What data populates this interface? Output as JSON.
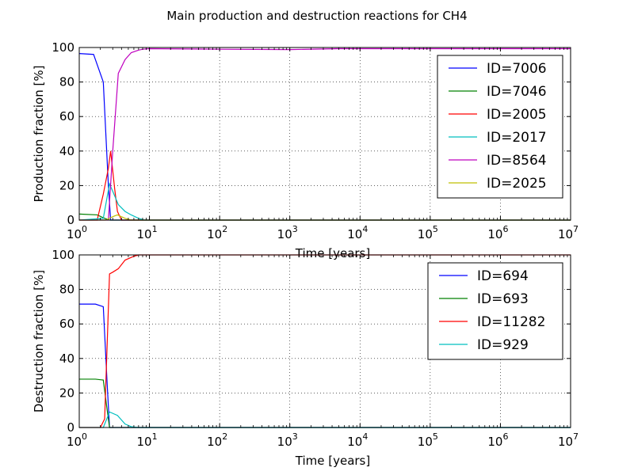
{
  "chart_data": [
    {
      "type": "line",
      "title": "Main production and destruction reactions for CH4",
      "xlabel": "Time [years]",
      "ylabel": "Production fraction [%]",
      "xscale": "log",
      "xlim": [
        1,
        10000000
      ],
      "ylim": [
        0,
        100
      ],
      "yticks": [
        0,
        20,
        40,
        60,
        80,
        100
      ],
      "xtick_labels": [
        {
          "base": "10",
          "exp": "0"
        },
        {
          "base": "10",
          "exp": "1"
        },
        {
          "base": "10",
          "exp": "2"
        },
        {
          "base": "10",
          "exp": "3"
        },
        {
          "base": "10",
          "exp": "4"
        },
        {
          "base": "10",
          "exp": "5"
        },
        {
          "base": "10",
          "exp": "6"
        },
        {
          "base": "10",
          "exp": "7"
        }
      ],
      "grid": true,
      "legend_position": "right",
      "series": [
        {
          "name": "ID=7006",
          "color": "#0000ff",
          "x": [
            1,
            1.6,
            2.2,
            2.6,
            2.8,
            10000000
          ],
          "y": [
            96.5,
            96,
            80,
            20,
            0,
            0
          ]
        },
        {
          "name": "ID=7046",
          "color": "#008000",
          "x": [
            1,
            1.8,
            2.3,
            2.7,
            10000000
          ],
          "y": [
            3.5,
            3,
            1,
            0,
            0
          ]
        },
        {
          "name": "ID=2005",
          "color": "#ff0000",
          "x": [
            1,
            1.8,
            2.2,
            2.6,
            2.8,
            3.2,
            3.5,
            4,
            10000000
          ],
          "y": [
            0,
            0,
            15,
            30,
            40,
            18,
            5,
            0,
            0
          ]
        },
        {
          "name": "ID=2017",
          "color": "#00bfbf",
          "x": [
            1,
            2.2,
            2.7,
            3.2,
            3.6,
            4.5,
            5.5,
            7,
            8.5,
            10000000
          ],
          "y": [
            0,
            1,
            21,
            14,
            9,
            5,
            3,
            1,
            0,
            0
          ]
        },
        {
          "name": "ID=8564",
          "color": "#bf00bf",
          "x": [
            1,
            2.6,
            3,
            3.6,
            4.5,
            5.5,
            7,
            8,
            10,
            100,
            1000,
            5000,
            10000000
          ],
          "y": [
            0,
            0,
            40,
            85,
            93,
            97,
            98.5,
            99,
            99.3,
            99,
            98.8,
            99.3,
            99.3
          ]
        },
        {
          "name": "ID=2025",
          "color": "#bfbf00",
          "x": [
            1,
            2.4,
            3,
            3.5,
            4.5,
            5.5,
            10000000
          ],
          "y": [
            0,
            0,
            2,
            3,
            1,
            0,
            0
          ]
        }
      ]
    },
    {
      "type": "line",
      "xlabel": "Time [years]",
      "ylabel": "Destruction fraction [%]",
      "xscale": "log",
      "xlim": [
        1,
        10000000
      ],
      "ylim": [
        0,
        100
      ],
      "yticks": [
        0,
        20,
        40,
        60,
        80,
        100
      ],
      "xtick_labels": [
        {
          "base": "10",
          "exp": "0"
        },
        {
          "base": "10",
          "exp": "1"
        },
        {
          "base": "10",
          "exp": "2"
        },
        {
          "base": "10",
          "exp": "3"
        },
        {
          "base": "10",
          "exp": "4"
        },
        {
          "base": "10",
          "exp": "5"
        },
        {
          "base": "10",
          "exp": "6"
        },
        {
          "base": "10",
          "exp": "7"
        }
      ],
      "grid": true,
      "legend_position": "top-right",
      "series": [
        {
          "name": "ID=694",
          "color": "#0000ff",
          "x": [
            1,
            1.7,
            2.2,
            2.5,
            2.7,
            10000000
          ],
          "y": [
            71.5,
            71.5,
            70,
            25,
            0,
            0
          ]
        },
        {
          "name": "ID=693",
          "color": "#008000",
          "x": [
            1,
            1.7,
            2.2,
            2.5,
            2.7,
            10000000
          ],
          "y": [
            28,
            28,
            27.5,
            10,
            0,
            0
          ]
        },
        {
          "name": "ID=11282",
          "color": "#ff0000",
          "x": [
            1,
            1.5,
            2,
            2.3,
            2.7,
            3,
            3.6,
            4.5,
            6,
            7,
            8,
            10000000
          ],
          "y": [
            0,
            0,
            0,
            5,
            89,
            90,
            92,
            97,
            99.2,
            100,
            100,
            100
          ]
        },
        {
          "name": "ID=929",
          "color": "#00bfbf",
          "x": [
            1,
            2.2,
            2.7,
            3.5,
            4.5,
            5.5,
            7,
            10000000
          ],
          "y": [
            0,
            0,
            9,
            7,
            2,
            0.5,
            0,
            0
          ]
        }
      ]
    }
  ]
}
